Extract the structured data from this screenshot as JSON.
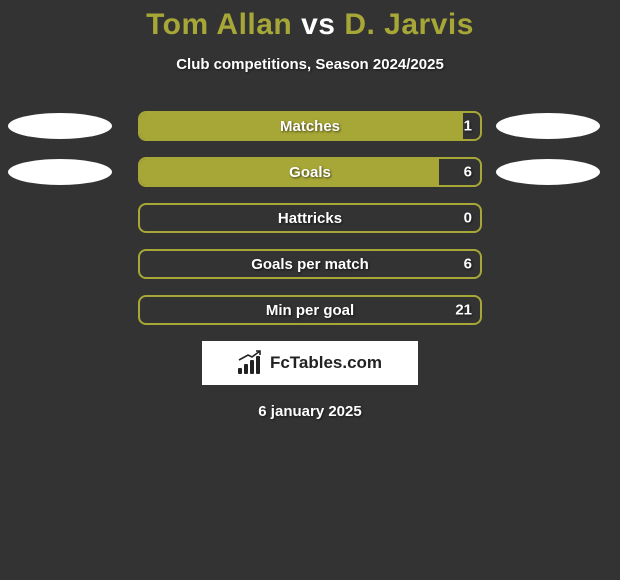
{
  "background_color": "#333333",
  "title": {
    "player1": "Tom Allan",
    "vs": "vs",
    "player2": "D. Jarvis",
    "player_color": "#a7a737",
    "vs_color": "#ffffff",
    "fontsize": 30
  },
  "subtitle": {
    "text": "Club competitions, Season 2024/2025",
    "color": "#ffffff",
    "fontsize": 15
  },
  "rows": [
    {
      "label": "Matches",
      "right_value": "1",
      "fill_pct": 95,
      "fill_color": "#a7a737",
      "border_color": "#a7a737",
      "left_ellipse": true,
      "right_ellipse": true
    },
    {
      "label": "Goals",
      "right_value": "6",
      "fill_pct": 88,
      "fill_color": "#a7a737",
      "border_color": "#a7a737",
      "left_ellipse": true,
      "right_ellipse": true
    },
    {
      "label": "Hattricks",
      "right_value": "0",
      "fill_pct": 0,
      "fill_color": "#a7a737",
      "border_color": "#a7a737",
      "left_ellipse": false,
      "right_ellipse": false
    },
    {
      "label": "Goals per match",
      "right_value": "6",
      "fill_pct": 0,
      "fill_color": "#a7a737",
      "border_color": "#a7a737",
      "left_ellipse": false,
      "right_ellipse": false
    },
    {
      "label": "Min per goal",
      "right_value": "21",
      "fill_pct": 0,
      "fill_color": "#a7a737",
      "border_color": "#a7a737",
      "left_ellipse": false,
      "right_ellipse": false
    }
  ],
  "ellipse": {
    "color": "#ffffff",
    "width": 104,
    "height": 26
  },
  "badge": {
    "text": "FcTables.com",
    "bg": "#ffffff",
    "text_color": "#222222"
  },
  "date": {
    "text": "6 january 2025",
    "color": "#ffffff",
    "fontsize": 15
  }
}
